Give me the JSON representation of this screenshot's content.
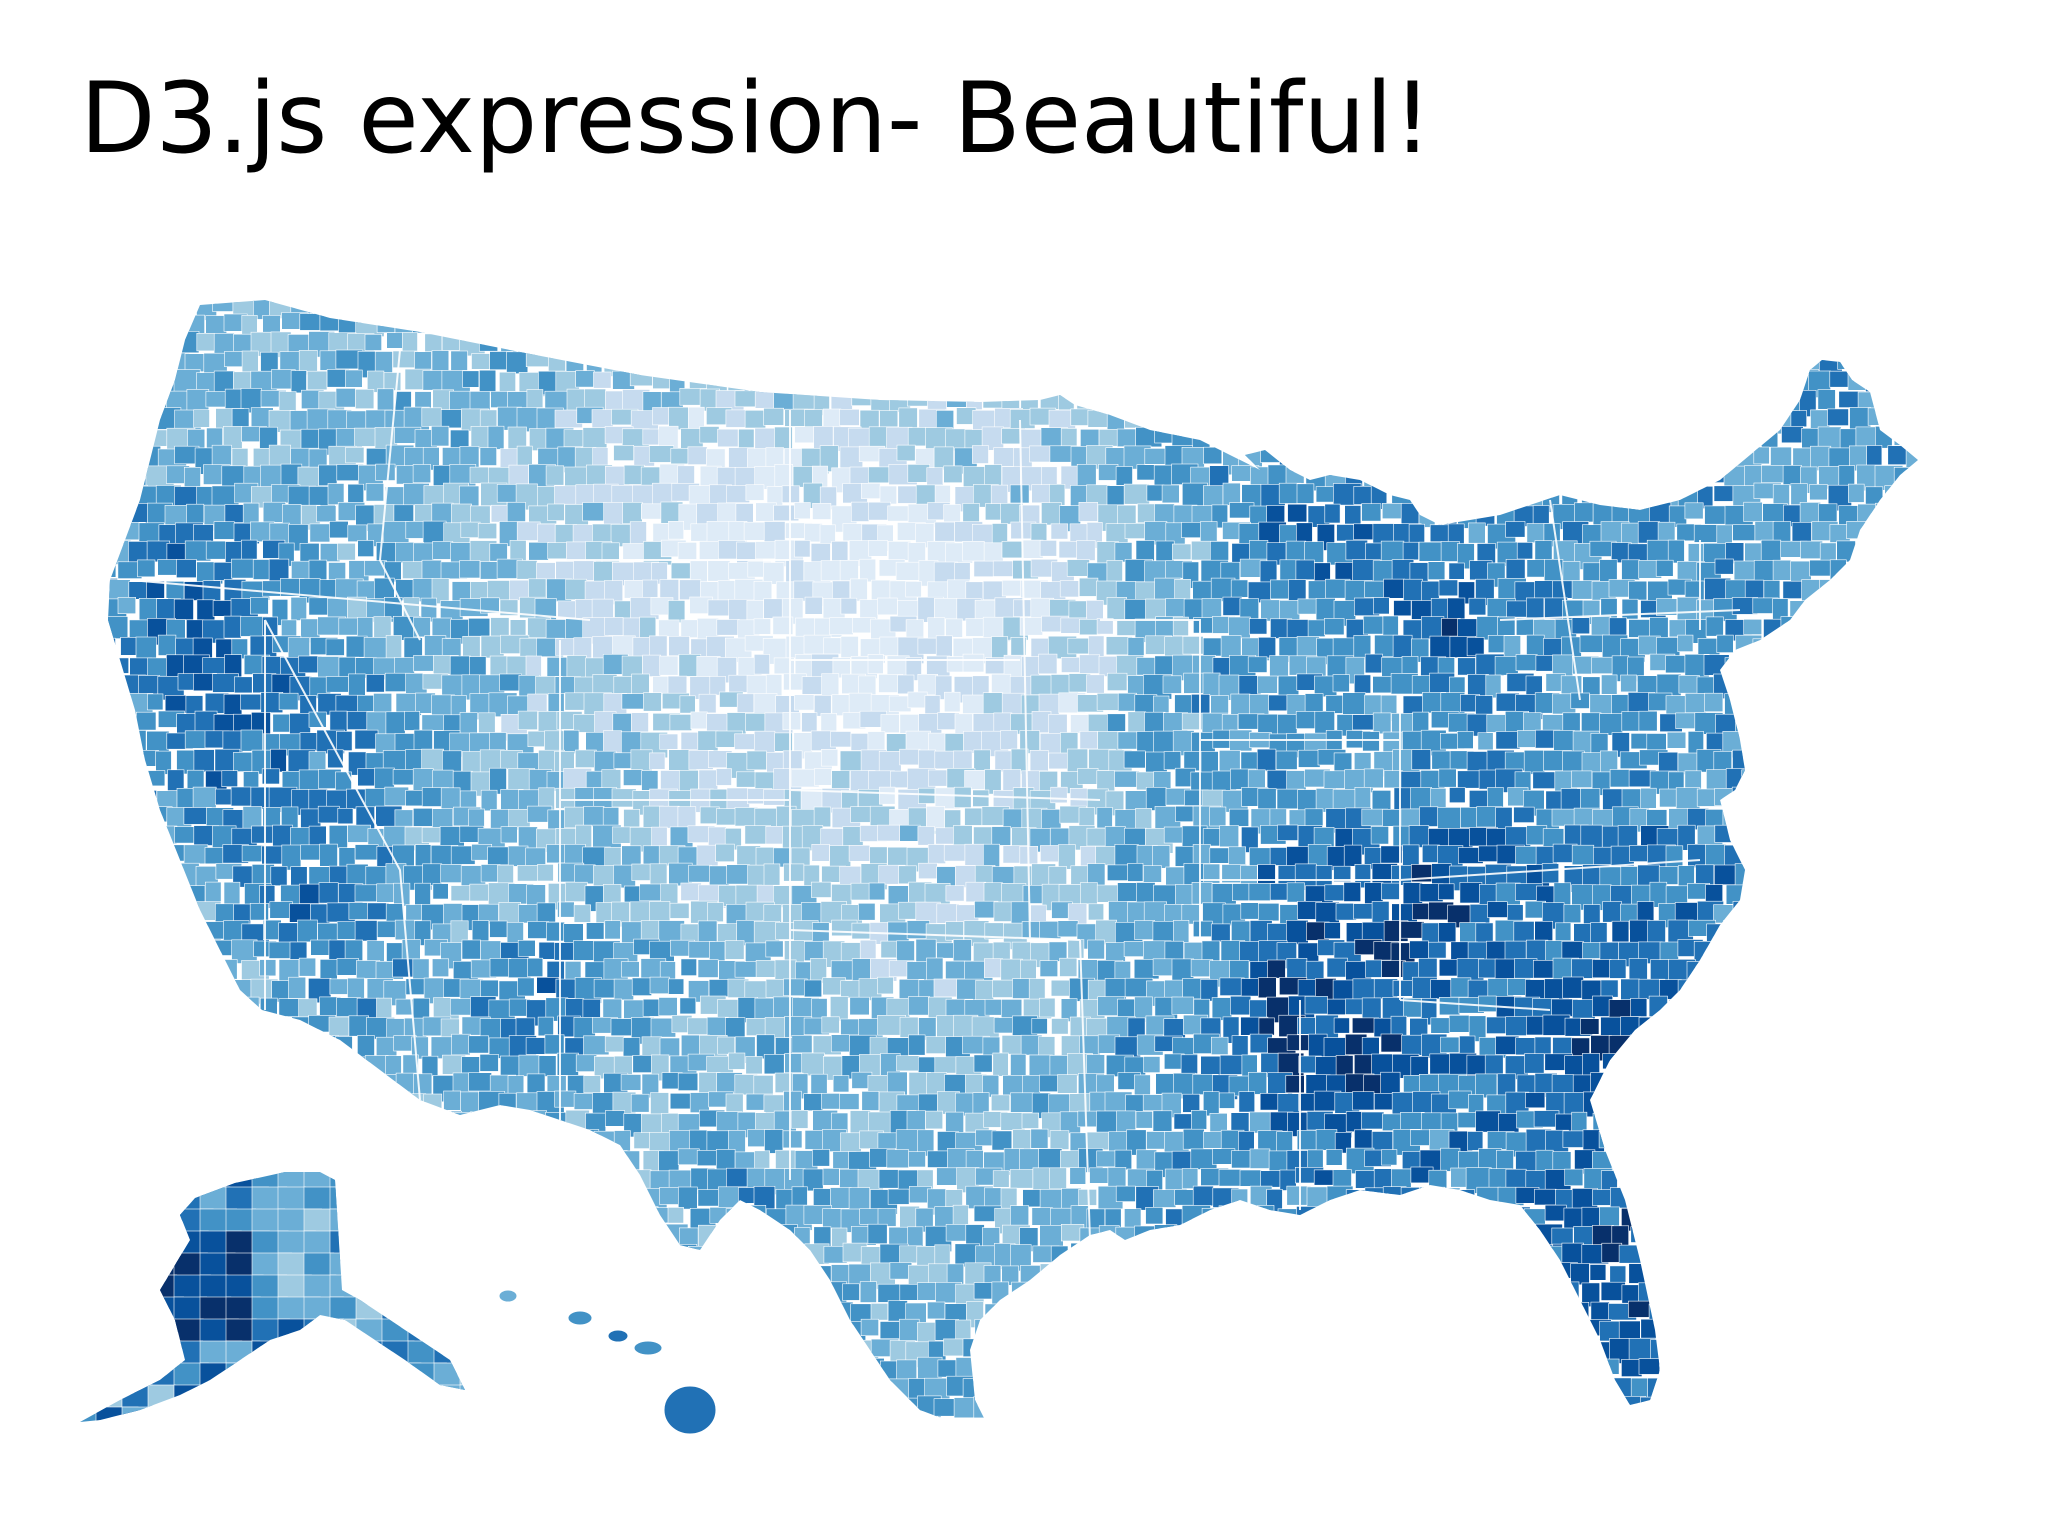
{
  "slide": {
    "title": "D3.js expression- Beautiful!"
  },
  "map": {
    "subject": "United States county choropleth",
    "palette": [
      "#deebf7",
      "#c6dbef",
      "#9ecae1",
      "#6baed6",
      "#4292c6",
      "#2171b5",
      "#08519c",
      "#08306b"
    ],
    "border_color": "#ffffff",
    "regions": [
      {
        "name": "contiguous-us",
        "label": ""
      },
      {
        "name": "alaska",
        "label": ""
      },
      {
        "name": "hawaii",
        "label": ""
      }
    ]
  }
}
